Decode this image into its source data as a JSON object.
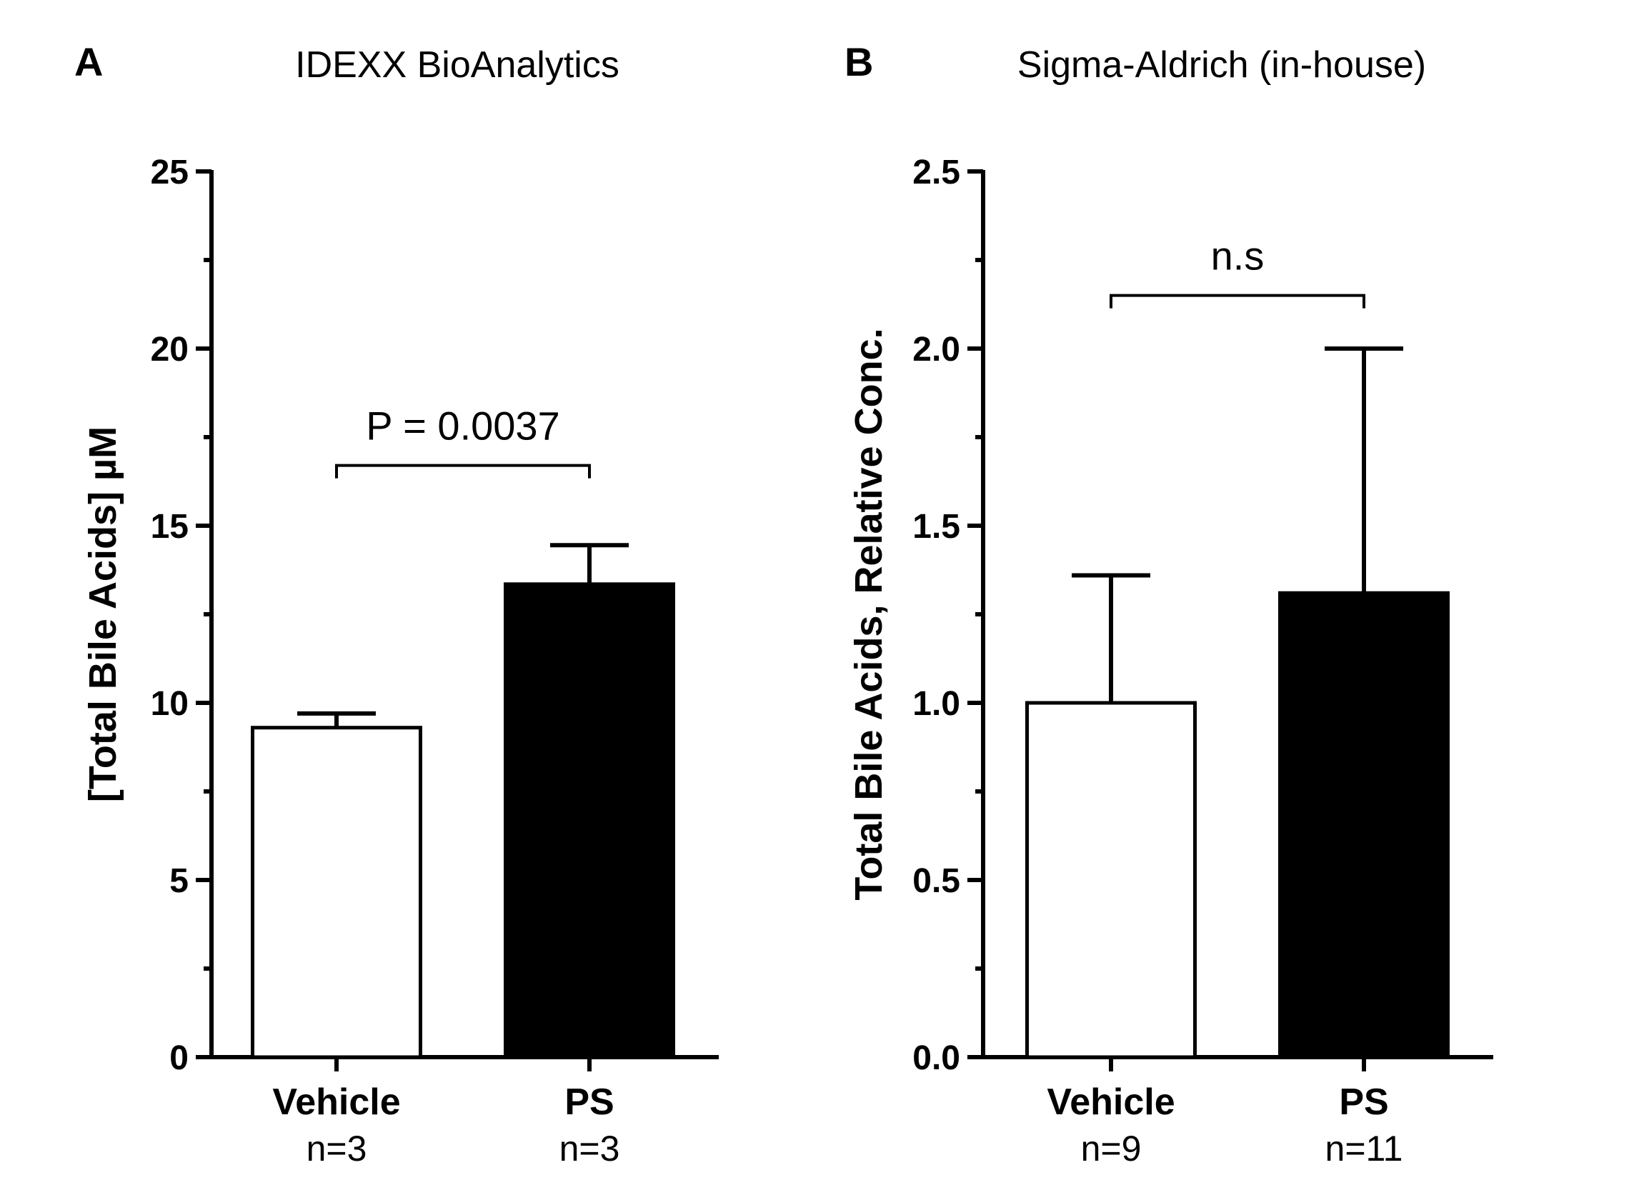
{
  "chart_data": [
    {
      "type": "bar",
      "panel": "A",
      "title": "IDEXX BioAnalytics",
      "ylabel": "[Total Bile Acids] µM",
      "ylim": [
        0,
        25
      ],
      "yticks": [
        0,
        5,
        10,
        15,
        20,
        25
      ],
      "ytick_labels": [
        "0",
        "5",
        "10",
        "15",
        "20",
        "25"
      ],
      "categories": [
        "Vehicle",
        "PS"
      ],
      "n_labels": [
        "n=3",
        "n=3"
      ],
      "values": [
        9.3,
        13.35
      ],
      "errors": [
        0.4,
        1.1
      ],
      "bar_colors": [
        "#ffffff",
        "#000000"
      ],
      "significance": {
        "label": "P = 0.0037",
        "from": 0,
        "to": 1,
        "y": 16.7
      }
    },
    {
      "type": "bar",
      "panel": "B",
      "title": "Sigma-Aldrich (in-house)",
      "ylabel": "Total Bile Acids,  Relative Conc.",
      "ylim": [
        0,
        2.5
      ],
      "yticks": [
        0,
        0.5,
        1.0,
        1.5,
        2.0,
        2.5
      ],
      "ytick_labels": [
        "0.0",
        "0.5",
        "1.0",
        "1.5",
        "2.0",
        "2.5"
      ],
      "categories": [
        "Vehicle",
        "PS"
      ],
      "n_labels": [
        "n=9",
        "n=11"
      ],
      "values": [
        1.0,
        1.31
      ],
      "errors": [
        0.36,
        0.69
      ],
      "bar_colors": [
        "#ffffff",
        "#000000"
      ],
      "significance": {
        "label": "n.s",
        "from": 0,
        "to": 1,
        "y": 2.15
      }
    }
  ]
}
